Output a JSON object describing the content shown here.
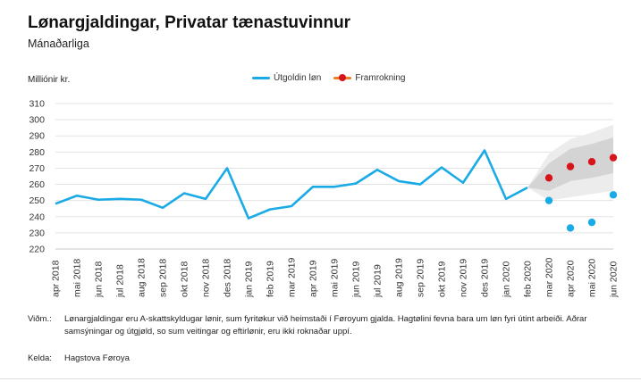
{
  "title": "Lønargjaldingar, Privatar tænastuvinnur",
  "subtitle": "Mánaðarliga",
  "unit_label": "Milliónir kr.",
  "legend": {
    "actual": "Útgoldin løn",
    "forecast": "Framrokning"
  },
  "notes": {
    "label": "Viðm.:",
    "text": "Lønargjaldingar eru A-skattskyldugar lønir, sum fyritøkur við heimstaði í Føroyum gjalda. Hagtølini fevna bara um løn fyri útint arbeiði. Aðrar samsýningar og útgjøld, so sum veitingar og eftirlønir, eru ikki roknaðar uppí."
  },
  "source": {
    "label": "Kelda:",
    "text": "Hagstova Føroya"
  },
  "colors": {
    "actual": "#1aabe6",
    "forecast": "#d7141a",
    "band_outer": "#ececec",
    "band_inner": "#d4d4d4",
    "grid": "#e3e3e3"
  },
  "chart_data": {
    "type": "line",
    "title": "Lønargjaldingar, Privatar tænastuvinnur",
    "subtitle": "Mánaðarliga",
    "ylabel": "Milliónir kr.",
    "ylim": [
      220,
      310
    ],
    "yticks": [
      220,
      230,
      240,
      250,
      260,
      270,
      280,
      290,
      300,
      310
    ],
    "grid": true,
    "legend_position": "top",
    "categories": [
      "apr 2018",
      "mai 2018",
      "jun 2018",
      "jul 2018",
      "aug 2018",
      "sep 2018",
      "okt 2018",
      "nov 2018",
      "des 2018",
      "jan 2019",
      "feb 2019",
      "mar 2019",
      "apr 2019",
      "mai 2019",
      "jun 2019",
      "jul 2019",
      "aug 2019",
      "sep 2019",
      "okt 2019",
      "nov 2019",
      "des 2019",
      "jan 2020",
      "feb 2020",
      "mar 2020",
      "apr 2020",
      "mai 2020",
      "jun 2020"
    ],
    "series": [
      {
        "name": "Útgoldin løn",
        "kind": "line",
        "values": [
          248,
          253,
          250.5,
          251,
          250.5,
          245.5,
          254.5,
          251,
          270,
          239,
          244.5,
          246.5,
          258.5,
          258.5,
          260.5,
          269,
          262,
          260,
          270.5,
          261,
          281,
          251,
          258,
          null,
          null,
          null,
          null
        ]
      },
      {
        "name": "Útgoldin løn",
        "kind": "points",
        "values": [
          null,
          null,
          null,
          null,
          null,
          null,
          null,
          null,
          null,
          null,
          null,
          null,
          null,
          null,
          null,
          null,
          null,
          null,
          null,
          null,
          null,
          null,
          null,
          250,
          233,
          236.5,
          253.5
        ]
      },
      {
        "name": "Framrokning",
        "kind": "points",
        "values": [
          null,
          null,
          null,
          null,
          null,
          null,
          null,
          null,
          null,
          null,
          null,
          null,
          null,
          null,
          null,
          null,
          null,
          null,
          null,
          null,
          null,
          null,
          null,
          264,
          271,
          274,
          276.5
        ]
      }
    ],
    "uncertainty_band": {
      "categories": [
        "feb 2020",
        "mar 2020",
        "apr 2020",
        "mai 2020",
        "jun 2020"
      ],
      "outer_low": [
        258,
        250,
        252,
        254,
        256
      ],
      "outer_high": [
        258,
        279,
        288,
        292,
        297
      ],
      "inner_low": [
        258,
        256,
        262,
        264,
        267
      ],
      "inner_high": [
        258,
        273,
        282,
        285,
        289
      ]
    }
  }
}
